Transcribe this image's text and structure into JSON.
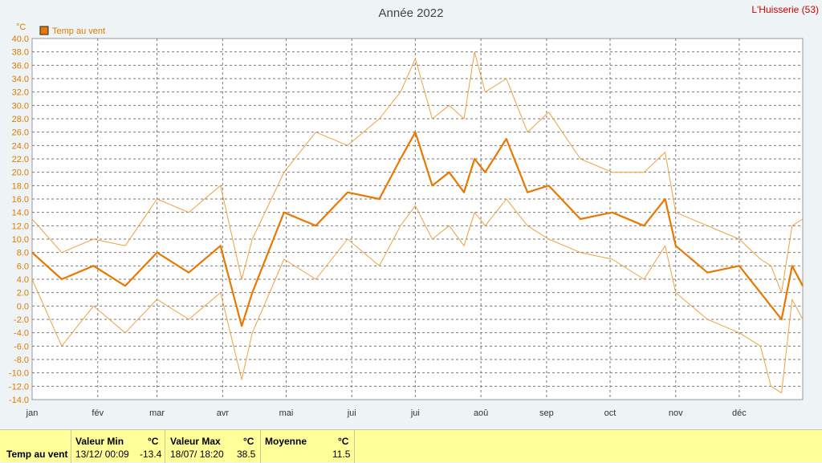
{
  "corner_label": "L'Huisserie (53)",
  "chart_data": {
    "type": "line",
    "title": "Année 2022",
    "ylabel": "°C",
    "ylim": [
      -14,
      40
    ],
    "ytick_step": 2,
    "grid": true,
    "legend_position": "top-left",
    "months": [
      "jan",
      "fév",
      "mar",
      "avr",
      "mai",
      "jui",
      "jui",
      "aoû",
      "sep",
      "oct",
      "nov",
      "déc"
    ],
    "x_days": [
      1,
      15,
      30,
      45,
      60,
      75,
      90,
      100,
      105,
      120,
      135,
      150,
      165,
      175,
      182,
      190,
      198,
      205,
      210,
      215,
      225,
      235,
      245,
      260,
      275,
      290,
      300,
      305,
      320,
      335,
      345,
      350,
      355,
      360,
      365
    ],
    "series": [
      {
        "name": "Temp au vent",
        "role": "mean",
        "color": "#e87800",
        "values": [
          8,
          4,
          6,
          3,
          8,
          5,
          9,
          -3,
          2,
          14,
          12,
          17,
          16,
          22,
          26,
          18,
          20,
          17,
          22,
          20,
          25,
          17,
          18,
          13,
          14,
          12,
          16,
          9,
          5,
          6,
          2,
          0,
          -2,
          6,
          3
        ]
      },
      {
        "role": "max",
        "color": "#f0a040",
        "values": [
          13,
          8,
          10,
          9,
          16,
          14,
          18,
          4,
          10,
          20,
          26,
          24,
          28,
          32,
          37,
          28,
          30,
          28,
          38,
          32,
          34,
          26,
          29,
          22,
          20,
          20,
          23,
          14,
          12,
          10,
          7,
          6,
          2,
          12,
          13
        ]
      },
      {
        "role": "min",
        "color": "#f0a040",
        "values": [
          4,
          -6,
          0,
          -4,
          1,
          -2,
          2,
          -11,
          -4,
          7,
          4,
          10,
          6,
          12,
          15,
          10,
          12,
          9,
          14,
          12,
          16,
          12,
          10,
          8,
          7,
          4,
          9,
          2,
          -2,
          -4,
          -6,
          -12,
          -13,
          1,
          -2
        ]
      }
    ]
  },
  "stats": {
    "row_label": "Temp au vent",
    "min": {
      "header": "Valeur Min",
      "unit": "°C",
      "when": "13/12/  00:09",
      "value": "-13.4"
    },
    "max": {
      "header": "Valeur Max",
      "unit": "°C",
      "when": "18/07/  18:20",
      "value": "38.5"
    },
    "avg": {
      "header": "Moyenne",
      "unit": "°C",
      "value": "11.5"
    }
  }
}
